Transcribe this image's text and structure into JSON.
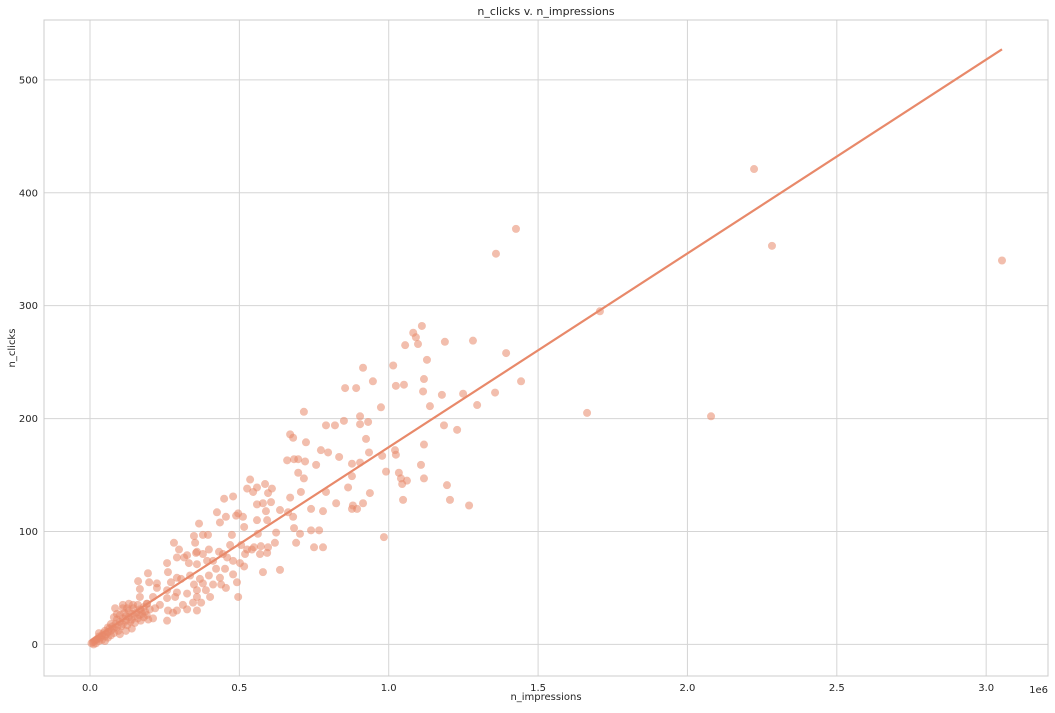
{
  "chart_data": {
    "type": "scatter",
    "title": "n_clicks v. n_impressions",
    "xlabel": "n_impressions",
    "ylabel": "n_clicks",
    "x_offset_label": "1e6",
    "x_scale_factor": 1000000,
    "xlim": [
      -0.154,
      3.207
    ],
    "ylim": [
      -28,
      553
    ],
    "xticks": [
      0.0,
      0.5,
      1.0,
      1.5,
      2.0,
      2.5,
      3.0
    ],
    "xtick_labels": [
      "0.0",
      "0.5",
      "1.0",
      "1.5",
      "2.0",
      "2.5",
      "3.0"
    ],
    "yticks": [
      0,
      100,
      200,
      300,
      400,
      500
    ],
    "ytick_labels": [
      "0",
      "100",
      "200",
      "300",
      "400",
      "500"
    ],
    "grid": true,
    "point_color": "#e8896a",
    "point_alpha": 0.55,
    "line_color": "#e8896a",
    "regression_line": {
      "x": [
        0.0,
        3.053
      ],
      "y": [
        3,
        527
      ]
    },
    "points": [
      [
        2.223,
        421
      ],
      [
        1.426,
        368
      ],
      [
        1.359,
        346
      ],
      [
        2.283,
        353
      ],
      [
        3.053,
        340
      ],
      [
        1.707,
        295
      ],
      [
        1.664,
        205
      ],
      [
        2.079,
        202
      ],
      [
        1.269,
        123
      ],
      [
        1.443,
        233
      ],
      [
        1.393,
        258
      ],
      [
        1.282,
        269
      ],
      [
        1.111,
        282
      ],
      [
        1.082,
        276
      ],
      [
        1.091,
        272
      ],
      [
        1.055,
        265
      ],
      [
        1.098,
        266
      ],
      [
        1.188,
        268
      ],
      [
        1.128,
        252
      ],
      [
        1.015,
        247
      ],
      [
        0.914,
        245
      ],
      [
        0.947,
        233
      ],
      [
        0.854,
        227
      ],
      [
        0.891,
        227
      ],
      [
        1.024,
        229
      ],
      [
        1.051,
        230
      ],
      [
        1.118,
        235
      ],
      [
        1.115,
        224
      ],
      [
        1.178,
        221
      ],
      [
        1.249,
        222
      ],
      [
        1.356,
        223
      ],
      [
        1.296,
        212
      ],
      [
        1.138,
        211
      ],
      [
        0.974,
        210
      ],
      [
        0.716,
        206
      ],
      [
        0.904,
        202
      ],
      [
        0.85,
        198
      ],
      [
        0.82,
        194
      ],
      [
        0.79,
        194
      ],
      [
        0.904,
        195
      ],
      [
        0.931,
        197
      ],
      [
        1.185,
        194
      ],
      [
        1.229,
        190
      ],
      [
        0.67,
        186
      ],
      [
        0.68,
        183
      ],
      [
        0.723,
        179
      ],
      [
        0.924,
        182
      ],
      [
        1.118,
        177
      ],
      [
        0.773,
        172
      ],
      [
        0.797,
        170
      ],
      [
        0.934,
        170
      ],
      [
        1.021,
        172
      ],
      [
        0.834,
        166
      ],
      [
        0.978,
        167
      ],
      [
        1.024,
        168
      ],
      [
        0.66,
        163
      ],
      [
        0.683,
        164
      ],
      [
        0.697,
        164
      ],
      [
        0.72,
        162
      ],
      [
        0.757,
        159
      ],
      [
        0.877,
        160
      ],
      [
        0.904,
        161
      ],
      [
        1.108,
        159
      ],
      [
        0.697,
        152
      ],
      [
        0.991,
        153
      ],
      [
        1.034,
        152
      ],
      [
        0.716,
        147
      ],
      [
        0.877,
        149
      ],
      [
        1.041,
        147
      ],
      [
        1.061,
        145
      ],
      [
        1.045,
        142
      ],
      [
        1.118,
        147
      ],
      [
        1.195,
        141
      ],
      [
        0.706,
        135
      ],
      [
        0.79,
        135
      ],
      [
        0.864,
        139
      ],
      [
        0.937,
        134
      ],
      [
        0.67,
        130
      ],
      [
        1.205,
        128
      ],
      [
        1.048,
        128
      ],
      [
        0.824,
        125
      ],
      [
        0.88,
        123
      ],
      [
        0.914,
        125
      ],
      [
        0.877,
        120
      ],
      [
        0.894,
        120
      ],
      [
        0.74,
        120
      ],
      [
        0.78,
        118
      ],
      [
        0.663,
        117
      ],
      [
        0.68,
        113
      ],
      [
        0.683,
        103
      ],
      [
        0.74,
        101
      ],
      [
        0.767,
        101
      ],
      [
        0.703,
        98
      ],
      [
        0.984,
        95
      ],
      [
        0.69,
        90
      ],
      [
        0.75,
        86
      ],
      [
        0.78,
        86
      ],
      [
        0.536,
        146
      ],
      [
        0.449,
        129
      ],
      [
        0.479,
        131
      ],
      [
        0.526,
        138
      ],
      [
        0.559,
        139
      ],
      [
        0.586,
        142
      ],
      [
        0.596,
        134
      ],
      [
        0.609,
        138
      ],
      [
        0.546,
        135
      ],
      [
        0.559,
        124
      ],
      [
        0.579,
        125
      ],
      [
        0.606,
        126
      ],
      [
        0.425,
        117
      ],
      [
        0.455,
        113
      ],
      [
        0.489,
        114
      ],
      [
        0.496,
        116
      ],
      [
        0.512,
        113
      ],
      [
        0.559,
        110
      ],
      [
        0.593,
        110
      ],
      [
        0.589,
        118
      ],
      [
        0.636,
        119
      ],
      [
        0.365,
        107
      ],
      [
        0.435,
        108
      ],
      [
        0.516,
        104
      ],
      [
        0.623,
        99
      ],
      [
        0.348,
        96
      ],
      [
        0.378,
        97
      ],
      [
        0.395,
        97
      ],
      [
        0.475,
        97
      ],
      [
        0.562,
        98
      ],
      [
        0.281,
        90
      ],
      [
        0.352,
        90
      ],
      [
        0.358,
        82
      ],
      [
        0.398,
        84
      ],
      [
        0.432,
        82
      ],
      [
        0.469,
        88
      ],
      [
        0.506,
        88
      ],
      [
        0.526,
        84
      ],
      [
        0.549,
        86
      ],
      [
        0.572,
        87
      ],
      [
        0.596,
        86
      ],
      [
        0.619,
        90
      ],
      [
        0.298,
        84
      ],
      [
        0.291,
        77
      ],
      [
        0.315,
        77
      ],
      [
        0.325,
        79
      ],
      [
        0.355,
        81
      ],
      [
        0.378,
        80
      ],
      [
        0.412,
        74
      ],
      [
        0.445,
        80
      ],
      [
        0.459,
        77
      ],
      [
        0.479,
        74
      ],
      [
        0.519,
        80
      ],
      [
        0.542,
        84
      ],
      [
        0.569,
        80
      ],
      [
        0.593,
        81
      ],
      [
        0.258,
        72
      ],
      [
        0.331,
        72
      ],
      [
        0.358,
        71
      ],
      [
        0.392,
        74
      ],
      [
        0.422,
        67
      ],
      [
        0.452,
        67
      ],
      [
        0.502,
        72
      ],
      [
        0.516,
        69
      ],
      [
        0.579,
        64
      ],
      [
        0.636,
        66
      ],
      [
        0.261,
        64
      ],
      [
        0.194,
        63
      ],
      [
        0.291,
        59
      ],
      [
        0.335,
        61
      ],
      [
        0.368,
        58
      ],
      [
        0.398,
        61
      ],
      [
        0.435,
        59
      ],
      [
        0.479,
        62
      ],
      [
        0.161,
        56
      ],
      [
        0.198,
        55
      ],
      [
        0.224,
        54
      ],
      [
        0.271,
        55
      ],
      [
        0.305,
        58
      ],
      [
        0.348,
        53
      ],
      [
        0.378,
        54
      ],
      [
        0.412,
        53
      ],
      [
        0.439,
        53
      ],
      [
        0.492,
        55
      ],
      [
        0.167,
        49
      ],
      [
        0.224,
        50
      ],
      [
        0.258,
        48
      ],
      [
        0.291,
        46
      ],
      [
        0.325,
        45
      ],
      [
        0.358,
        48
      ],
      [
        0.388,
        48
      ],
      [
        0.455,
        50
      ],
      [
        0.167,
        42
      ],
      [
        0.211,
        42
      ],
      [
        0.258,
        41
      ],
      [
        0.285,
        42
      ],
      [
        0.358,
        42
      ],
      [
        0.402,
        42
      ],
      [
        0.496,
        42
      ],
      [
        0.11,
        35
      ],
      [
        0.144,
        35
      ],
      [
        0.191,
        36
      ],
      [
        0.234,
        35
      ],
      [
        0.311,
        35
      ],
      [
        0.345,
        37
      ],
      [
        0.372,
        37
      ],
      [
        0.084,
        32
      ],
      [
        0.124,
        32
      ],
      [
        0.167,
        31
      ],
      [
        0.218,
        32
      ],
      [
        0.261,
        30
      ],
      [
        0.291,
        30
      ],
      [
        0.325,
        31
      ],
      [
        0.358,
        30
      ],
      [
        0.211,
        23
      ],
      [
        0.258,
        21
      ],
      [
        0.278,
        28
      ],
      [
        0.005,
        1
      ],
      [
        0.01,
        2
      ],
      [
        0.012,
        0
      ],
      [
        0.015,
        3
      ],
      [
        0.02,
        4
      ],
      [
        0.02,
        1
      ],
      [
        0.025,
        5
      ],
      [
        0.03,
        3
      ],
      [
        0.03,
        7
      ],
      [
        0.035,
        6
      ],
      [
        0.04,
        8
      ],
      [
        0.04,
        4
      ],
      [
        0.045,
        10
      ],
      [
        0.05,
        7
      ],
      [
        0.05,
        12
      ],
      [
        0.055,
        9
      ],
      [
        0.06,
        11
      ],
      [
        0.06,
        6
      ],
      [
        0.065,
        14
      ],
      [
        0.07,
        12
      ],
      [
        0.07,
        8
      ],
      [
        0.075,
        16
      ],
      [
        0.08,
        14
      ],
      [
        0.08,
        10
      ],
      [
        0.085,
        18
      ],
      [
        0.09,
        15
      ],
      [
        0.09,
        22
      ],
      [
        0.095,
        12
      ],
      [
        0.1,
        20
      ],
      [
        0.1,
        26
      ],
      [
        0.105,
        16
      ],
      [
        0.11,
        23
      ],
      [
        0.11,
        18
      ],
      [
        0.115,
        28
      ],
      [
        0.12,
        21
      ],
      [
        0.12,
        25
      ],
      [
        0.125,
        17
      ],
      [
        0.13,
        24
      ],
      [
        0.13,
        30
      ],
      [
        0.135,
        20
      ],
      [
        0.14,
        27
      ],
      [
        0.14,
        22
      ],
      [
        0.145,
        32
      ],
      [
        0.15,
        25
      ],
      [
        0.15,
        19
      ],
      [
        0.155,
        28
      ],
      [
        0.16,
        23
      ],
      [
        0.16,
        35
      ],
      [
        0.165,
        26
      ],
      [
        0.17,
        30
      ],
      [
        0.17,
        21
      ],
      [
        0.175,
        27
      ],
      [
        0.18,
        33
      ],
      [
        0.18,
        24
      ],
      [
        0.185,
        29
      ],
      [
        0.19,
        26
      ],
      [
        0.19,
        36
      ],
      [
        0.195,
        22
      ],
      [
        0.2,
        31
      ],
      [
        0.07,
        18
      ],
      [
        0.06,
        15
      ],
      [
        0.05,
        3
      ],
      [
        0.1,
        9
      ],
      [
        0.12,
        12
      ],
      [
        0.14,
        14
      ],
      [
        0.03,
        10
      ],
      [
        0.09,
        27
      ],
      [
        0.11,
        32
      ],
      [
        0.13,
        36
      ],
      [
        0.08,
        24
      ]
    ]
  }
}
